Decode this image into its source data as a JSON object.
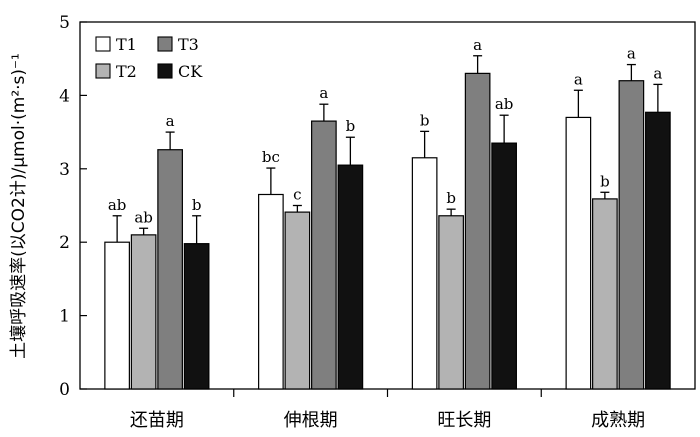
{
  "chart_data": {
    "type": "bar",
    "ylabel": "土壤呼吸速率(以CO2计)/μmol·(m²·s)⁻¹",
    "ylim": [
      0,
      5
    ],
    "yticks": [
      "0",
      "1",
      "2",
      "3",
      "4",
      "5"
    ],
    "categories": [
      "还苗期",
      "伸根期",
      "旺长期",
      "成熟期"
    ],
    "series": [
      {
        "name": "T1",
        "color": "#ffffff",
        "values": [
          2.0,
          2.65,
          3.15,
          3.7
        ],
        "errors": [
          0.36,
          0.36,
          0.36,
          0.37
        ],
        "letters": [
          "ab",
          "bc",
          "b",
          "a"
        ]
      },
      {
        "name": "T2",
        "color": "#b3b3b3",
        "values": [
          2.1,
          2.41,
          2.36,
          2.59
        ],
        "errors": [
          0.09,
          0.09,
          0.09,
          0.09
        ],
        "letters": [
          "ab",
          "c",
          "b",
          "b"
        ]
      },
      {
        "name": "T3",
        "color": "#7f7f7f",
        "values": [
          3.26,
          3.65,
          4.3,
          4.2
        ],
        "errors": [
          0.24,
          0.23,
          0.24,
          0.22
        ],
        "letters": [
          "a",
          "a",
          "a",
          "a"
        ]
      },
      {
        "name": "CK",
        "color": "#111111",
        "values": [
          1.98,
          3.05,
          3.35,
          3.77
        ],
        "errors": [
          0.38,
          0.38,
          0.38,
          0.38
        ],
        "letters": [
          "b",
          "b",
          "ab",
          "a"
        ]
      }
    ],
    "legend_position": "top-left",
    "grid": false
  }
}
